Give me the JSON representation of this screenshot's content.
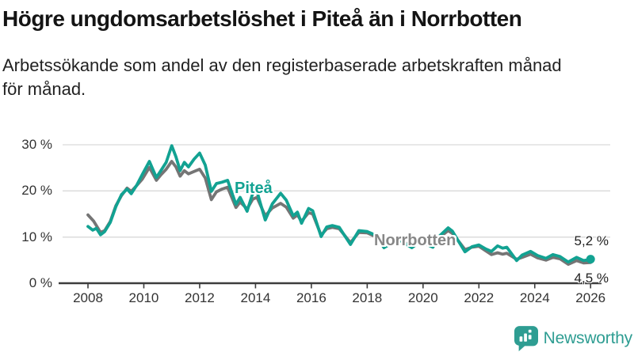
{
  "title": "Högre ungdomsarbetslöshet i Piteå än i Norrbotten",
  "subtitle_lines": {
    "line1": "Arbetssökande som andel av den registerbaserade arbetskraften månad",
    "line2": "för månad."
  },
  "branding": {
    "logo_text": "Newsworthy",
    "logo_color": "#2E9D92"
  },
  "chart_data": {
    "type": "line",
    "title": "Högre ungdomsarbetslöshet i Piteå än i Norrbotten",
    "subtitle": "Arbetssökande som andel av den registerbaserade arbetskraften månad för månad.",
    "unit": "%",
    "grid": "horizontal",
    "grid_color": "#D9D9D9",
    "axis_color": "#3C3C3C",
    "xlim": [
      2007.1,
      2026.7
    ],
    "ylim": [
      0,
      32
    ],
    "x_ticks": [
      {
        "value": 2008,
        "label": "2008"
      },
      {
        "value": 2010,
        "label": "2010"
      },
      {
        "value": 2012,
        "label": "2012"
      },
      {
        "value": 2014,
        "label": "2014"
      },
      {
        "value": 2016,
        "label": "2016"
      },
      {
        "value": 2018,
        "label": "2018"
      },
      {
        "value": 2020,
        "label": "2020"
      },
      {
        "value": 2022,
        "label": "2022"
      },
      {
        "value": 2024,
        "label": "2024"
      },
      {
        "value": 2026,
        "label": "2026"
      }
    ],
    "y_ticks": [
      {
        "value": 0,
        "label": "0 %"
      },
      {
        "value": 10,
        "label": "10 %"
      },
      {
        "value": 20,
        "label": "20 %"
      },
      {
        "value": 30,
        "label": "30 %"
      }
    ],
    "series": [
      {
        "name": "Piteå",
        "color": "#12A292",
        "end_label": "5,2 %",
        "end_value": 5.2,
        "end_marker": true,
        "points": [
          [
            2008.0,
            12.3
          ],
          [
            2008.17,
            11.5
          ],
          [
            2008.3,
            11.9
          ],
          [
            2008.45,
            10.5
          ],
          [
            2008.6,
            11.2
          ],
          [
            2008.8,
            13.2
          ],
          [
            2009.0,
            16.6
          ],
          [
            2009.2,
            19.2
          ],
          [
            2009.4,
            20.4
          ],
          [
            2009.55,
            19.4
          ],
          [
            2009.75,
            21.3
          ],
          [
            2009.95,
            23.6
          ],
          [
            2010.2,
            26.4
          ],
          [
            2010.45,
            22.9
          ],
          [
            2010.6,
            24.3
          ],
          [
            2010.8,
            26.2
          ],
          [
            2011.0,
            29.8
          ],
          [
            2011.15,
            27.4
          ],
          [
            2011.3,
            24.4
          ],
          [
            2011.45,
            26.2
          ],
          [
            2011.6,
            25.2
          ],
          [
            2011.8,
            26.9
          ],
          [
            2012.0,
            28.2
          ],
          [
            2012.2,
            25.6
          ],
          [
            2012.42,
            19.9
          ],
          [
            2012.6,
            21.6
          ],
          [
            2012.8,
            21.9
          ],
          [
            2013.0,
            22.3
          ],
          [
            2013.3,
            17.1
          ],
          [
            2013.45,
            18.6
          ],
          [
            2013.7,
            15.6
          ],
          [
            2013.9,
            19.5
          ],
          [
            2014.05,
            19.9
          ],
          [
            2014.35,
            13.7
          ],
          [
            2014.6,
            17.2
          ],
          [
            2014.9,
            19.5
          ],
          [
            2015.1,
            18.0
          ],
          [
            2015.35,
            14.6
          ],
          [
            2015.5,
            15.4
          ],
          [
            2015.65,
            13.0
          ],
          [
            2015.9,
            16.2
          ],
          [
            2016.05,
            15.7
          ],
          [
            2016.35,
            10.1
          ],
          [
            2016.55,
            12.2
          ],
          [
            2016.75,
            12.5
          ],
          [
            2017.0,
            12.1
          ],
          [
            2017.4,
            8.4
          ],
          [
            2017.7,
            11.4
          ],
          [
            2018.0,
            11.2
          ],
          [
            2018.3,
            10.4
          ],
          [
            2018.6,
            7.7
          ],
          [
            2018.9,
            8.8
          ],
          [
            2019.1,
            9.6
          ],
          [
            2019.35,
            8.6
          ],
          [
            2019.6,
            7.7
          ],
          [
            2019.9,
            9.0
          ],
          [
            2020.1,
            8.5
          ],
          [
            2020.35,
            7.8
          ],
          [
            2020.6,
            10.3
          ],
          [
            2020.9,
            12.0
          ],
          [
            2021.05,
            11.3
          ],
          [
            2021.3,
            8.8
          ],
          [
            2021.5,
            6.8
          ],
          [
            2021.75,
            7.9
          ],
          [
            2022.0,
            8.3
          ],
          [
            2022.25,
            7.4
          ],
          [
            2022.45,
            6.9
          ],
          [
            2022.67,
            8.1
          ],
          [
            2022.85,
            7.6
          ],
          [
            2023.0,
            7.8
          ],
          [
            2023.35,
            4.9
          ],
          [
            2023.55,
            6.1
          ],
          [
            2023.85,
            6.9
          ],
          [
            2024.1,
            6.0
          ],
          [
            2024.4,
            5.4
          ],
          [
            2024.65,
            6.2
          ],
          [
            2024.9,
            5.8
          ],
          [
            2025.2,
            4.6
          ],
          [
            2025.5,
            5.6
          ],
          [
            2025.75,
            4.9
          ],
          [
            2026.0,
            5.2
          ]
        ]
      },
      {
        "name": "Norrbotten",
        "color": "#757575",
        "label_color": "#878787",
        "end_label": "4,5 %",
        "end_value": 4.5,
        "end_marker": false,
        "points": [
          [
            2008.0,
            14.8
          ],
          [
            2008.2,
            13.5
          ],
          [
            2008.45,
            11.0
          ],
          [
            2008.6,
            11.4
          ],
          [
            2008.8,
            13.4
          ],
          [
            2009.0,
            16.8
          ],
          [
            2009.2,
            19.0
          ],
          [
            2009.4,
            20.6
          ],
          [
            2009.55,
            19.9
          ],
          [
            2009.75,
            21.2
          ],
          [
            2009.95,
            22.6
          ],
          [
            2010.2,
            25.1
          ],
          [
            2010.45,
            22.3
          ],
          [
            2010.6,
            23.4
          ],
          [
            2010.8,
            24.7
          ],
          [
            2011.0,
            26.4
          ],
          [
            2011.15,
            25.2
          ],
          [
            2011.3,
            23.2
          ],
          [
            2011.45,
            24.4
          ],
          [
            2011.6,
            23.7
          ],
          [
            2011.8,
            24.2
          ],
          [
            2012.0,
            24.7
          ],
          [
            2012.2,
            22.8
          ],
          [
            2012.42,
            18.1
          ],
          [
            2012.6,
            19.8
          ],
          [
            2012.8,
            20.4
          ],
          [
            2013.0,
            20.8
          ],
          [
            2013.3,
            16.4
          ],
          [
            2013.45,
            17.6
          ],
          [
            2013.7,
            16.1
          ],
          [
            2013.9,
            18.2
          ],
          [
            2014.05,
            18.6
          ],
          [
            2014.35,
            14.6
          ],
          [
            2014.6,
            16.3
          ],
          [
            2014.9,
            17.3
          ],
          [
            2015.1,
            16.5
          ],
          [
            2015.35,
            14.1
          ],
          [
            2015.5,
            14.8
          ],
          [
            2015.65,
            13.4
          ],
          [
            2015.9,
            15.3
          ],
          [
            2016.05,
            15.0
          ],
          [
            2016.35,
            10.4
          ],
          [
            2016.55,
            11.8
          ],
          [
            2016.75,
            12.1
          ],
          [
            2017.0,
            11.8
          ],
          [
            2017.4,
            8.8
          ],
          [
            2017.7,
            11.0
          ],
          [
            2018.0,
            10.9
          ],
          [
            2018.3,
            10.1
          ],
          [
            2018.6,
            8.2
          ],
          [
            2018.9,
            9.0
          ],
          [
            2019.1,
            9.5
          ],
          [
            2019.35,
            8.8
          ],
          [
            2019.6,
            8.0
          ],
          [
            2019.9,
            9.2
          ],
          [
            2020.1,
            8.8
          ],
          [
            2020.35,
            8.1
          ],
          [
            2020.6,
            10.0
          ],
          [
            2020.9,
            11.4
          ],
          [
            2021.05,
            10.8
          ],
          [
            2021.3,
            8.9
          ],
          [
            2021.5,
            7.3
          ],
          [
            2021.75,
            7.8
          ],
          [
            2022.0,
            8.0
          ],
          [
            2022.25,
            7.0
          ],
          [
            2022.45,
            6.2
          ],
          [
            2022.67,
            6.6
          ],
          [
            2022.85,
            6.3
          ],
          [
            2023.0,
            6.5
          ],
          [
            2023.35,
            5.2
          ],
          [
            2023.55,
            5.6
          ],
          [
            2023.85,
            6.3
          ],
          [
            2024.1,
            5.5
          ],
          [
            2024.4,
            5.0
          ],
          [
            2024.65,
            5.6
          ],
          [
            2024.9,
            5.3
          ],
          [
            2025.2,
            4.1
          ],
          [
            2025.5,
            4.9
          ],
          [
            2025.75,
            4.4
          ],
          [
            2026.0,
            4.5
          ]
        ]
      }
    ]
  }
}
